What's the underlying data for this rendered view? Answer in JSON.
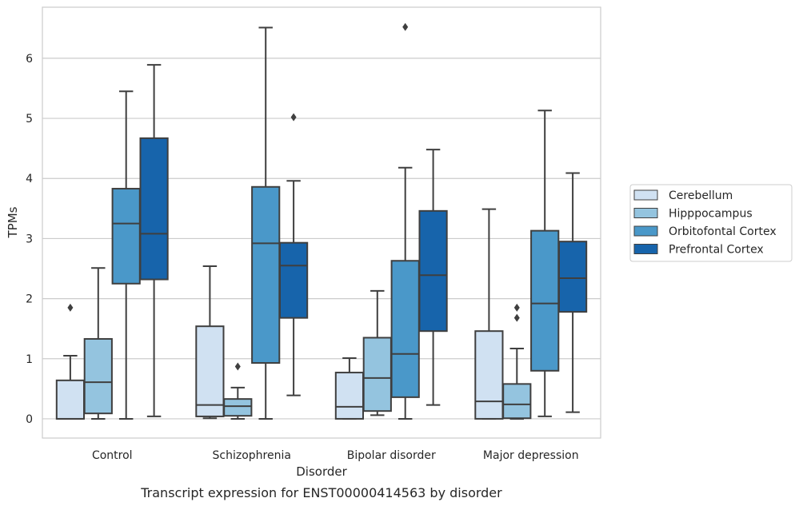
{
  "chart_data": {
    "type": "boxplot",
    "title": "",
    "caption": "Transcript expression for ENST00000414563 by disorder",
    "xlabel": "Disorder",
    "ylabel": "TPMs",
    "ylim": [
      -0.32,
      6.85
    ],
    "yticks": [
      "0",
      "1",
      "2",
      "3",
      "4",
      "5",
      "6"
    ],
    "grid": "horizontal",
    "legend_position": "right",
    "categories": [
      "Control",
      "Schizophrenia",
      "Bipolar disorder",
      "Major depression"
    ],
    "series": [
      {
        "name": "Cerebellum",
        "color": "#d0e1f2",
        "boxes": [
          {
            "whislo": 0,
            "q1": 0,
            "med": 0,
            "q3": 0.64,
            "whishi": 1.05,
            "fliers": [
              1.85
            ]
          },
          {
            "whislo": 0.01,
            "q1": 0.04,
            "med": 0.23,
            "q3": 1.54,
            "whishi": 2.54,
            "fliers": []
          },
          {
            "whislo": 0,
            "q1": 0,
            "med": 0.2,
            "q3": 0.77,
            "whishi": 1.01,
            "fliers": []
          },
          {
            "whislo": 0,
            "q1": 0,
            "med": 0.29,
            "q3": 1.46,
            "whishi": 3.49,
            "fliers": []
          }
        ]
      },
      {
        "name": "Hipppocampus",
        "color": "#94c4df",
        "boxes": [
          {
            "whislo": 0,
            "q1": 0.09,
            "med": 0.61,
            "q3": 1.33,
            "whishi": 2.51,
            "fliers": []
          },
          {
            "whislo": 0,
            "q1": 0.05,
            "med": 0.21,
            "q3": 0.33,
            "whishi": 0.52,
            "fliers": [
              0.87
            ]
          },
          {
            "whislo": 0.06,
            "q1": 0.13,
            "med": 0.68,
            "q3": 1.35,
            "whishi": 2.13,
            "fliers": []
          },
          {
            "whislo": 0,
            "q1": 0.01,
            "med": 0.24,
            "q3": 0.58,
            "whishi": 1.17,
            "fliers": [
              1.68,
              1.85
            ]
          }
        ]
      },
      {
        "name": "Orbitofontal Cortex",
        "color": "#4a98c9",
        "boxes": [
          {
            "whislo": 0,
            "q1": 2.25,
            "med": 3.25,
            "q3": 3.83,
            "whishi": 5.45,
            "fliers": []
          },
          {
            "whislo": 0,
            "q1": 0.93,
            "med": 2.92,
            "q3": 3.86,
            "whishi": 6.51,
            "fliers": []
          },
          {
            "whislo": 0,
            "q1": 0.36,
            "med": 1.08,
            "q3": 2.63,
            "whishi": 4.18,
            "fliers": [
              6.52
            ]
          },
          {
            "whislo": 0.04,
            "q1": 0.8,
            "med": 1.92,
            "q3": 3.13,
            "whishi": 5.13,
            "fliers": []
          }
        ]
      },
      {
        "name": "Prefrontal Cortex",
        "color": "#1764ab",
        "boxes": [
          {
            "whislo": 0.04,
            "q1": 2.32,
            "med": 3.08,
            "q3": 4.67,
            "whishi": 5.89,
            "fliers": []
          },
          {
            "whislo": 0.39,
            "q1": 1.68,
            "med": 2.55,
            "q3": 2.93,
            "whishi": 3.96,
            "fliers": [
              5.02
            ]
          },
          {
            "whislo": 0.23,
            "q1": 1.46,
            "med": 2.39,
            "q3": 3.46,
            "whishi": 4.48,
            "fliers": []
          },
          {
            "whislo": 0.11,
            "q1": 1.78,
            "med": 2.34,
            "q3": 2.95,
            "whishi": 4.09,
            "fliers": []
          }
        ]
      }
    ]
  }
}
